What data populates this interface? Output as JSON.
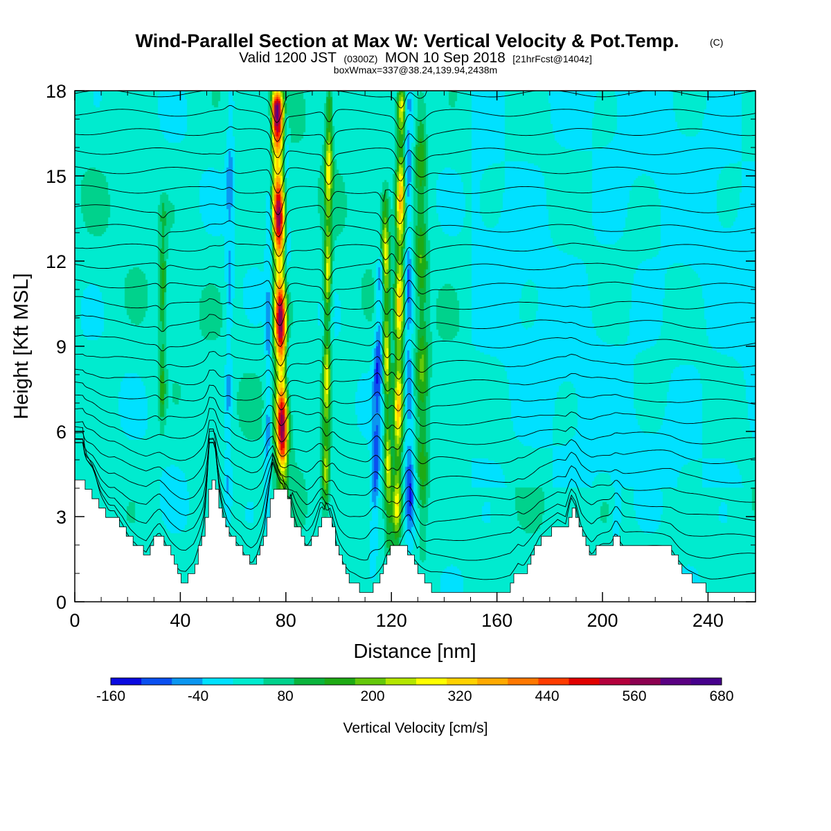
{
  "chart_data": {
    "type": "heatmap",
    "title": "Wind-Parallel Section at Max W: Vertical Velocity & Pot.Temp.",
    "title_mark": "(C)",
    "subtitle_main_a": "Valid 1200 JST",
    "subtitle_small_a": "(0300Z)",
    "subtitle_main_b": "MON 10 Sep 2018",
    "subtitle_small_b": "[21hrFcst@1404z]",
    "subtitle2": "boxWmax=337@38.24,139.94,2438m",
    "xlabel": "Distance [nm]",
    "ylabel": "Height [Kft MSL]",
    "xlim": [
      0,
      258
    ],
    "ylim": [
      0,
      18
    ],
    "x_ticks": [
      0,
      40,
      80,
      120,
      160,
      200,
      240
    ],
    "y_ticks": [
      0,
      3,
      6,
      9,
      12,
      15,
      18
    ],
    "colorbar": {
      "label": "Vertical Velocity [cm/s]",
      "min": -160,
      "max": 680,
      "step": 40,
      "tick_labels": [
        "-160",
        "-40",
        "80",
        "200",
        "320",
        "440",
        "560",
        "680"
      ],
      "colors": [
        "#0a0ae0",
        "#0a50f0",
        "#0a96f0",
        "#00e1ff",
        "#00ebcf",
        "#00d28c",
        "#0ab43c",
        "#1eaa14",
        "#64c80a",
        "#b4e600",
        "#ffff00",
        "#ffd200",
        "#ffaa00",
        "#ff7800",
        "#ff3c00",
        "#e10000",
        "#b4003c",
        "#8c0050",
        "#5a0082",
        "#46008c"
      ]
    },
    "terrain_kft": [
      [
        0,
        4.2
      ],
      [
        3,
        4.2
      ],
      [
        4,
        3.9
      ],
      [
        7,
        3.7
      ],
      [
        10,
        3.2
      ],
      [
        13,
        2.9
      ],
      [
        15,
        2.9
      ],
      [
        18,
        2.6
      ],
      [
        21,
        2.2
      ],
      [
        24,
        1.9
      ],
      [
        27,
        1.7
      ],
      [
        30,
        2.2
      ],
      [
        32,
        2.4
      ],
      [
        34,
        2.1
      ],
      [
        36,
        1.6
      ],
      [
        38,
        1.2
      ],
      [
        40,
        0.8
      ],
      [
        42,
        0.7
      ],
      [
        45,
        1.2
      ],
      [
        47,
        1.9
      ],
      [
        49,
        2.6
      ],
      [
        51,
        4.2
      ],
      [
        53,
        4.2
      ],
      [
        55,
        3.2
      ],
      [
        57,
        2.6
      ],
      [
        59,
        2.3
      ],
      [
        61,
        2.1
      ],
      [
        63,
        1.9
      ],
      [
        65,
        1.5
      ],
      [
        67,
        1.3
      ],
      [
        69,
        1.6
      ],
      [
        71,
        2.2
      ],
      [
        73,
        3.0
      ],
      [
        75,
        3.9
      ],
      [
        79,
        3.9
      ],
      [
        82,
        3.1
      ],
      [
        84,
        2.6
      ],
      [
        86,
        2.2
      ],
      [
        88,
        1.9
      ],
      [
        90,
        2.2
      ],
      [
        92,
        2.7
      ],
      [
        94,
        3.2
      ],
      [
        96,
        3.0
      ],
      [
        98,
        2.5
      ],
      [
        100,
        1.6
      ],
      [
        102,
        1.1
      ],
      [
        104,
        0.7
      ],
      [
        106,
        0.6
      ],
      [
        108,
        0.4
      ],
      [
        110,
        0.3
      ],
      [
        113,
        0.5
      ],
      [
        116,
        1.1
      ],
      [
        118,
        1.6
      ],
      [
        120,
        1.9
      ],
      [
        125,
        1.9
      ],
      [
        127,
        1.7
      ],
      [
        129,
        1.3
      ],
      [
        131,
        0.9
      ],
      [
        133,
        0.6
      ],
      [
        135,
        0.4
      ],
      [
        143,
        0.4
      ],
      [
        148,
        0.3
      ],
      [
        155,
        0.3
      ],
      [
        160,
        0.35
      ],
      [
        165,
        0.5
      ],
      [
        168,
        1.2
      ],
      [
        170,
        1.0
      ],
      [
        172,
        1.4
      ],
      [
        176,
        2.2
      ],
      [
        180,
        2.5
      ],
      [
        183,
        2.7
      ],
      [
        186,
        2.6
      ],
      [
        188,
        3.2
      ],
      [
        190,
        3.0
      ],
      [
        192,
        2.3
      ],
      [
        194,
        1.9
      ],
      [
        196,
        1.6
      ],
      [
        198,
        1.9
      ],
      [
        200,
        2.0
      ],
      [
        203,
        2.0
      ],
      [
        205,
        2.3
      ],
      [
        208,
        1.9
      ],
      [
        212,
        1.9
      ],
      [
        216,
        1.9
      ],
      [
        220,
        1.9
      ],
      [
        223,
        1.9
      ],
      [
        226,
        1.8
      ],
      [
        229,
        1.3
      ],
      [
        232,
        0.9
      ],
      [
        235,
        0.7
      ],
      [
        238,
        0.5
      ],
      [
        241,
        0.35
      ],
      [
        250,
        0.35
      ],
      [
        258,
        0.35
      ]
    ],
    "updraft_cores": [
      {
        "x_bottom": 79,
        "x_top": 76.5,
        "y_bottom": 4.0,
        "y_top": 18,
        "max": 560,
        "width_nm": 2.4
      },
      {
        "x_bottom": 122,
        "x_top": 124,
        "y_bottom": 2.2,
        "y_top": 18,
        "max": 320,
        "width_nm": 1.8
      },
      {
        "x_bottom": 119,
        "x_top": 117.5,
        "y_bottom": 2.2,
        "y_top": 14.5,
        "max": 260,
        "width_nm": 1.4
      },
      {
        "x_bottom": 95,
        "x_top": 96.5,
        "y_bottom": 3.5,
        "y_top": 18,
        "max": 260,
        "width_nm": 1.4
      },
      {
        "x_bottom": 132,
        "x_top": 131,
        "y_bottom": 2.0,
        "y_top": 18,
        "max": 160,
        "width_nm": 2.2
      },
      {
        "x_bottom": 33,
        "x_top": 33.5,
        "y_bottom": 6.0,
        "y_top": 14,
        "max": 140,
        "width_nm": 1.2
      }
    ],
    "downdraft_cores": [
      {
        "x_bottom": 73,
        "x_top": 74,
        "y_bottom": 3.0,
        "y_top": 18,
        "min": -80,
        "width_nm": 1.2
      },
      {
        "x_bottom": 81,
        "x_top": 80,
        "y_bottom": 4.0,
        "y_top": 18,
        "min": -60,
        "width_nm": 1.2
      },
      {
        "x_bottom": 113,
        "x_top": 116,
        "y_bottom": 1.5,
        "y_top": 12,
        "min": -120,
        "width_nm": 1.6
      },
      {
        "x_bottom": 127,
        "x_top": 126,
        "y_bottom": 2.0,
        "y_top": 18,
        "min": -100,
        "width_nm": 1.5
      },
      {
        "x_bottom": 58,
        "x_top": 59,
        "y_bottom": 3.0,
        "y_top": 18,
        "min": -60,
        "width_nm": 1.4
      },
      {
        "x_bottom": 205,
        "x_top": 206,
        "y_bottom": 2.0,
        "y_top": 4.5,
        "min": -60,
        "width_nm": 1.6
      }
    ],
    "theta_contour_count": 26
  }
}
